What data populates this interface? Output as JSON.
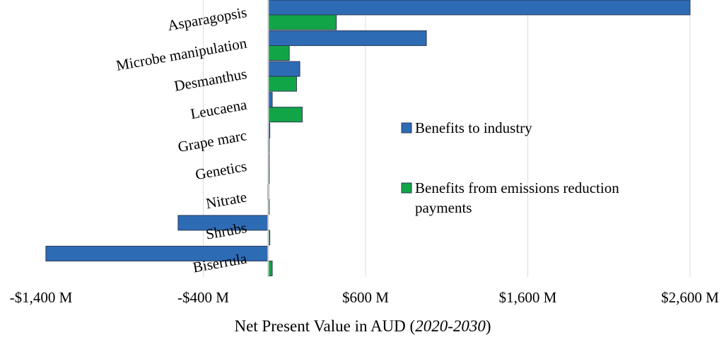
{
  "chart_data": {
    "type": "bar",
    "orientation": "horizontal",
    "categories": [
      "Asparagopsis",
      "Microbe manipulation",
      "Desmanthus",
      "Leucaena",
      "Grape marc",
      "Genetics",
      "Nitrate",
      "Shrubs",
      "Biserrula"
    ],
    "series": [
      {
        "name": "Benefits to industry",
        "color": "#2E6BB5",
        "values": [
          2600,
          975,
          195,
          25,
          10,
          5,
          -3,
          -555,
          -1370
        ]
      },
      {
        "name": "Benefits from emissions reduction payments",
        "color": "#12A548",
        "values": [
          420,
          130,
          175,
          210,
          5,
          3,
          3,
          10,
          25
        ]
      }
    ],
    "xlim": [
      -1400,
      2600
    ],
    "xticks": [
      -1400,
      -400,
      600,
      1600,
      2600
    ],
    "xtick_labels": [
      "-$1,400 M",
      "-$400 M",
      "$600 M",
      "$1,600 M",
      "$2,600 M"
    ],
    "xlabel_main": "Net Present Value in AUD (",
    "xlabel_italic": "2020-2030",
    "xlabel_end": ")",
    "legend_position": "center-right",
    "legend_lines": [
      [
        "Benefits to industry"
      ],
      [
        "Benefits from emissions reduction",
        "payments"
      ]
    ],
    "grid": "vertical"
  }
}
